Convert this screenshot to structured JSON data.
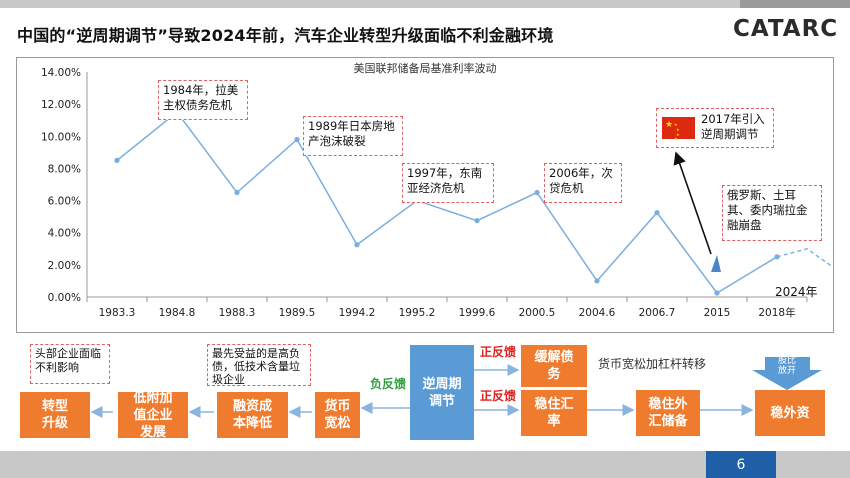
{
  "title": "中国的“逆周期调节”导致2024年前，汽车企业转型升级面临不利金融环境",
  "logo": "CATARC",
  "page_number": "6",
  "chart_data": {
    "type": "line",
    "title": "美国联邦储备局基准利率波动",
    "categories": [
      "1983.3",
      "1984.8",
      "1988.3",
      "1989.5",
      "1994.2",
      "1995.2",
      "1999.6",
      "2000.5",
      "2004.6",
      "2006.7",
      "2015",
      "2018年"
    ],
    "values": [
      8.5,
      11.5,
      6.5,
      9.8,
      3.25,
      6.0,
      4.75,
      6.5,
      1.0,
      5.25,
      0.25,
      2.5
    ],
    "projection": {
      "values": [
        2.5,
        3.0,
        1.6
      ],
      "label": "2024年"
    },
    "yticks": [
      "0.00%",
      "2.00%",
      "4.00%",
      "6.00%",
      "8.00%",
      "10.00%",
      "12.00%",
      "14.00%"
    ],
    "ylim": [
      0,
      14
    ],
    "annotations": [
      {
        "text": "1984年，拉美主权债务危机"
      },
      {
        "text": "1989年日本房地产泡沫破裂"
      },
      {
        "text": "1997年，东南亚经济危机"
      },
      {
        "text": "2006年，次贷危机"
      },
      {
        "text": "俄罗斯、土耳其、委内瑞拉金融崩盘"
      },
      {
        "text": "2017年引入逆周期调节"
      }
    ],
    "colors": {
      "line": "#7aaee0",
      "flag": "#de2910"
    }
  },
  "flow": {
    "counter_cycle": "逆周期调节",
    "neg_feedback": "负反馈",
    "pos_feedback_1": "正反馈",
    "pos_feedback_2": "正反馈",
    "box_ease_debt": "缓解债务",
    "box_stable_fx": "稳住汇率",
    "box_stable_reserve": "稳住外汇储备",
    "box_stable_capital": "稳外资",
    "box_loose_money": "货币宽松",
    "box_low_cost": "融资成本降低",
    "box_low_value": "低附加值企业发展",
    "box_head_firms": "转型升级",
    "note_leverage": "货币宽松加杠杆转移",
    "note_beneficiary": "最先受益的是高负债，低技术含量垃圾企业",
    "note_head": "头部企业面临不利影响",
    "tag_release": "股比放开"
  }
}
